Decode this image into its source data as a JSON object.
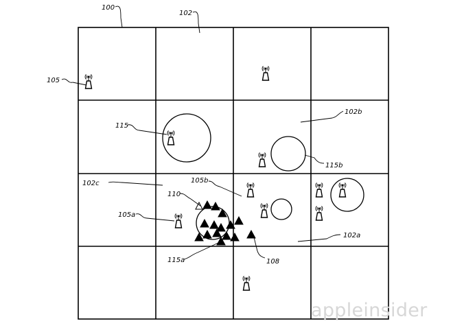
{
  "labels": {
    "grid": "100",
    "cell": "102",
    "cell_b": "102b",
    "cell_c": "102c",
    "cell_a": "102a",
    "transmitter": "105",
    "transmitter_a": "105a",
    "transmitter_b": "105b",
    "user_device": "110",
    "coverage": "115",
    "coverage_a": "115a",
    "coverage_b": "115b",
    "devices": "108"
  },
  "watermark": "appleinsider"
}
